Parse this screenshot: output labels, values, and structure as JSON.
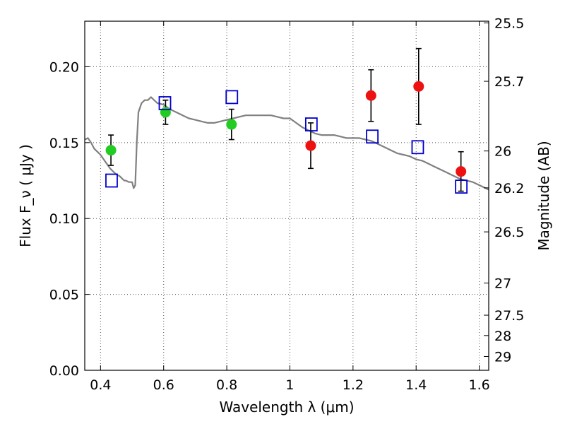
{
  "chart_data": {
    "type": "scatter",
    "xlabel": "Wavelength  λ (μm)",
    "ylabel": "Flux  F_ν  ( μJy )",
    "y2label": "Magnitude (AB)",
    "xlim": [
      0.35,
      1.63
    ],
    "ylim": [
      0.0,
      0.23
    ],
    "grid": true,
    "x_ticks": [
      0.4,
      0.6,
      0.8,
      1.0,
      1.2,
      1.4,
      1.6
    ],
    "x_tick_labels": [
      "0.4",
      "0.6",
      "0.8",
      "1",
      "1.2",
      "1.4",
      "1.6"
    ],
    "y_ticks": [
      0.0,
      0.05,
      0.1,
      0.15,
      0.2
    ],
    "y_tick_labels": [
      "0.00",
      "0.05",
      "0.10",
      "0.15",
      "0.20"
    ],
    "y2_ticks": [
      {
        "label": "25.5",
        "flux": 0.2289
      },
      {
        "label": "25.7",
        "flux": 0.1904
      },
      {
        "label": "26",
        "flux": 0.1445
      },
      {
        "label": "26.2",
        "flux": 0.1202
      },
      {
        "label": "26.5",
        "flux": 0.0912
      },
      {
        "label": "27",
        "flux": 0.0575
      },
      {
        "label": "27.5",
        "flux": 0.0363
      },
      {
        "label": "28",
        "flux": 0.0229
      },
      {
        "label": "29",
        "flux": 0.0091
      }
    ],
    "series": [
      {
        "marker": "line",
        "color": "#808080",
        "x": [
          0.35,
          0.36,
          0.37,
          0.38,
          0.39,
          0.4,
          0.41,
          0.42,
          0.43,
          0.44,
          0.45,
          0.46,
          0.465,
          0.47,
          0.475,
          0.48,
          0.49,
          0.5,
          0.505,
          0.51,
          0.515,
          0.52,
          0.53,
          0.54,
          0.55,
          0.56,
          0.58,
          0.6,
          0.62,
          0.64,
          0.66,
          0.68,
          0.7,
          0.72,
          0.74,
          0.76,
          0.78,
          0.8,
          0.82,
          0.84,
          0.86,
          0.88,
          0.9,
          0.92,
          0.94,
          0.96,
          0.98,
          1.0,
          1.02,
          1.04,
          1.06,
          1.08,
          1.1,
          1.12,
          1.14,
          1.16,
          1.18,
          1.2,
          1.22,
          1.24,
          1.26,
          1.28,
          1.3,
          1.32,
          1.34,
          1.36,
          1.38,
          1.4,
          1.42,
          1.44,
          1.46,
          1.48,
          1.5,
          1.52,
          1.54,
          1.56,
          1.58,
          1.6,
          1.62,
          1.63
        ],
        "y": [
          0.152,
          0.153,
          0.15,
          0.146,
          0.144,
          0.142,
          0.139,
          0.136,
          0.133,
          0.131,
          0.129,
          0.128,
          0.127,
          0.126,
          0.125,
          0.125,
          0.124,
          0.124,
          0.12,
          0.122,
          0.15,
          0.17,
          0.176,
          0.178,
          0.178,
          0.18,
          0.176,
          0.175,
          0.172,
          0.17,
          0.168,
          0.166,
          0.165,
          0.164,
          0.163,
          0.163,
          0.164,
          0.165,
          0.166,
          0.167,
          0.168,
          0.168,
          0.168,
          0.168,
          0.168,
          0.167,
          0.166,
          0.166,
          0.163,
          0.16,
          0.158,
          0.156,
          0.155,
          0.155,
          0.155,
          0.154,
          0.153,
          0.153,
          0.153,
          0.152,
          0.151,
          0.149,
          0.147,
          0.145,
          0.143,
          0.142,
          0.141,
          0.139,
          0.138,
          0.136,
          0.134,
          0.132,
          0.13,
          0.128,
          0.126,
          0.125,
          0.124,
          0.122,
          0.12,
          0.119
        ]
      },
      {
        "marker": "circle",
        "color": "#22cc22",
        "x": [
          0.433,
          0.606,
          0.815
        ],
        "y": [
          0.145,
          0.17,
          0.162
        ],
        "yerr": [
          0.01,
          0.008,
          0.01
        ]
      },
      {
        "marker": "circle",
        "color": "#ee1111",
        "x": [
          1.066,
          1.257,
          1.408,
          1.542
        ],
        "y": [
          0.148,
          0.181,
          0.187,
          0.131
        ],
        "yerr": [
          0.015,
          0.017,
          0.025,
          0.013
        ]
      },
      {
        "marker": "square",
        "color": "#0000cc",
        "x": [
          0.435,
          0.604,
          0.816,
          1.068,
          1.261,
          1.405,
          1.543
        ],
        "y": [
          0.125,
          0.176,
          0.18,
          0.162,
          0.154,
          0.147,
          0.121
        ]
      }
    ]
  }
}
